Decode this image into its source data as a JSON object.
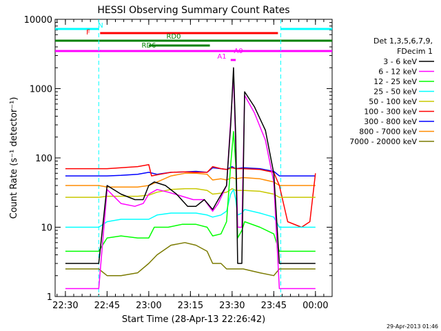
{
  "chart_data": {
    "type": "line",
    "title": "HESSI Observing Summary Count Rates",
    "xlabel": "Start Time (28-Apr-13 22:26:42)",
    "ylabel": "Count Rate (s⁻¹ detector⁻¹)",
    "y_scale": "log",
    "ylim": [
      1,
      10000
    ],
    "xlim_minutes": [
      -3.7,
      96
    ],
    "x_ticks": [
      {
        "minute": 0,
        "label": "22:30"
      },
      {
        "minute": 15,
        "label": "22:45"
      },
      {
        "minute": 30,
        "label": "23:00"
      },
      {
        "minute": 45,
        "label": "23:15"
      },
      {
        "minute": 60,
        "label": "23:30"
      },
      {
        "minute": 75,
        "label": "23:45"
      },
      {
        "minute": 90,
        "label": "00:00"
      }
    ],
    "y_ticks": [
      {
        "value": 1,
        "label": "1"
      },
      {
        "value": 10,
        "label": "10"
      },
      {
        "value": 100,
        "label": "100"
      },
      {
        "value": 1000,
        "label": "1000"
      },
      {
        "value": 10000,
        "label": "10000"
      }
    ],
    "legend": {
      "position": "right",
      "header": [
        "Det 1,3,5,6,7,9,",
        "FDecim 1"
      ]
    },
    "series": [
      {
        "name": "3 - 6 keV",
        "color": "#000000",
        "points": [
          [
            0,
            3
          ],
          [
            12,
            3
          ],
          [
            15,
            40
          ],
          [
            20,
            30
          ],
          [
            25,
            25
          ],
          [
            28,
            25
          ],
          [
            30,
            40
          ],
          [
            32,
            45
          ],
          [
            36,
            40
          ],
          [
            40,
            30
          ],
          [
            44,
            20
          ],
          [
            47,
            20
          ],
          [
            50,
            25
          ],
          [
            53,
            18
          ],
          [
            55,
            25
          ],
          [
            58,
            40
          ],
          [
            59.5,
            300
          ],
          [
            60.5,
            2000
          ],
          [
            61.3,
            200
          ],
          [
            62,
            3
          ],
          [
            63.5,
            3
          ],
          [
            64.5,
            900
          ],
          [
            68,
            550
          ],
          [
            72,
            250
          ],
          [
            75,
            60
          ],
          [
            77,
            3
          ],
          [
            90,
            3
          ]
        ]
      },
      {
        "name": "6 - 12 keV",
        "color": "#ff00ff",
        "points": [
          [
            0,
            1.3
          ],
          [
            12,
            1.3
          ],
          [
            15,
            35
          ],
          [
            20,
            22
          ],
          [
            25,
            20
          ],
          [
            28,
            22
          ],
          [
            30,
            30
          ],
          [
            33,
            35
          ],
          [
            37,
            32
          ],
          [
            42,
            28
          ],
          [
            46,
            25
          ],
          [
            50,
            25
          ],
          [
            53,
            17
          ],
          [
            55,
            22
          ],
          [
            58,
            40
          ],
          [
            59.5,
            350
          ],
          [
            60.5,
            1500
          ],
          [
            61.3,
            150
          ],
          [
            62,
            10
          ],
          [
            63.5,
            10
          ],
          [
            64.5,
            800
          ],
          [
            68,
            450
          ],
          [
            72,
            180
          ],
          [
            75,
            45
          ],
          [
            77,
            1.3
          ],
          [
            90,
            1.3
          ]
        ]
      },
      {
        "name": "12 - 25 keV",
        "color": "#00ff00",
        "points": [
          [
            0,
            4.5
          ],
          [
            12,
            4.5
          ],
          [
            15,
            7
          ],
          [
            20,
            7.5
          ],
          [
            26,
            7
          ],
          [
            30,
            7
          ],
          [
            32,
            10
          ],
          [
            37,
            10
          ],
          [
            42,
            11
          ],
          [
            47,
            11
          ],
          [
            51,
            10
          ],
          [
            53,
            7.5
          ],
          [
            56,
            8
          ],
          [
            58,
            12
          ],
          [
            59.5,
            80
          ],
          [
            60.5,
            240
          ],
          [
            61.3,
            80
          ],
          [
            62,
            7
          ],
          [
            63.5,
            9
          ],
          [
            64.5,
            12
          ],
          [
            70,
            10
          ],
          [
            75,
            8
          ],
          [
            77,
            4.5
          ],
          [
            90,
            4.5
          ]
        ]
      },
      {
        "name": "25 - 50 keV",
        "color": "#00ffff",
        "points": [
          [
            0,
            10
          ],
          [
            12,
            10
          ],
          [
            15,
            12
          ],
          [
            20,
            13
          ],
          [
            26,
            13
          ],
          [
            30,
            13
          ],
          [
            33,
            15
          ],
          [
            38,
            16
          ],
          [
            43,
            16
          ],
          [
            47,
            16
          ],
          [
            51,
            15
          ],
          [
            53,
            14
          ],
          [
            56,
            15
          ],
          [
            58,
            17
          ],
          [
            59.5,
            30
          ],
          [
            60.5,
            35
          ],
          [
            61.3,
            25
          ],
          [
            62,
            15
          ],
          [
            63.5,
            16
          ],
          [
            64.5,
            18
          ],
          [
            70,
            16
          ],
          [
            75,
            14
          ],
          [
            77,
            10
          ],
          [
            90,
            10
          ]
        ]
      },
      {
        "name": "50 - 100 keV",
        "color": "#c8c800",
        "points": [
          [
            0,
            27
          ],
          [
            12,
            27
          ],
          [
            15,
            28
          ],
          [
            20,
            28
          ],
          [
            26,
            28
          ],
          [
            30,
            29
          ],
          [
            33,
            32
          ],
          [
            38,
            35
          ],
          [
            43,
            36
          ],
          [
            47,
            36
          ],
          [
            51,
            34
          ],
          [
            53,
            30
          ],
          [
            56,
            31
          ],
          [
            58,
            32
          ],
          [
            60,
            36
          ],
          [
            61.3,
            34
          ],
          [
            64,
            34
          ],
          [
            70,
            33
          ],
          [
            75,
            30
          ],
          [
            77,
            27
          ],
          [
            90,
            27
          ]
        ]
      },
      {
        "name": "100 - 300 keV",
        "color": "#ff0000",
        "points": [
          [
            0,
            70
          ],
          [
            12,
            70
          ],
          [
            15,
            70
          ],
          [
            20,
            72
          ],
          [
            26,
            75
          ],
          [
            30,
            80
          ],
          [
            31,
            55
          ],
          [
            34,
            58
          ],
          [
            38,
            62
          ],
          [
            43,
            63
          ],
          [
            47,
            62
          ],
          [
            51,
            62
          ],
          [
            53,
            75
          ],
          [
            56,
            70
          ],
          [
            58,
            68
          ],
          [
            60,
            72
          ],
          [
            61.3,
            70
          ],
          [
            64,
            70
          ],
          [
            70,
            68
          ],
          [
            75,
            62
          ],
          [
            77,
            40
          ],
          [
            80,
            12
          ],
          [
            85,
            10
          ],
          [
            88,
            12
          ],
          [
            90,
            60
          ]
        ]
      },
      {
        "name": "300 - 800 keV",
        "color": "#0000ff",
        "points": [
          [
            0,
            55
          ],
          [
            12,
            55
          ],
          [
            15,
            55
          ],
          [
            20,
            56
          ],
          [
            26,
            58
          ],
          [
            30,
            62
          ],
          [
            33,
            58
          ],
          [
            38,
            62
          ],
          [
            43,
            63
          ],
          [
            47,
            64
          ],
          [
            51,
            62
          ],
          [
            53,
            72
          ],
          [
            56,
            70
          ],
          [
            58,
            68
          ],
          [
            60,
            75
          ],
          [
            61.3,
            70
          ],
          [
            64,
            72
          ],
          [
            70,
            70
          ],
          [
            75,
            64
          ],
          [
            77,
            55
          ],
          [
            90,
            55
          ]
        ]
      },
      {
        "name": "800 - 7000 keV",
        "color": "#ff8c00",
        "points": [
          [
            0,
            40
          ],
          [
            12,
            40
          ],
          [
            15,
            38
          ],
          [
            20,
            38
          ],
          [
            26,
            38
          ],
          [
            30,
            40
          ],
          [
            33,
            45
          ],
          [
            38,
            55
          ],
          [
            43,
            60
          ],
          [
            47,
            60
          ],
          [
            51,
            58
          ],
          [
            53,
            48
          ],
          [
            56,
            50
          ],
          [
            58,
            48
          ],
          [
            60,
            52
          ],
          [
            61.3,
            50
          ],
          [
            64,
            52
          ],
          [
            70,
            50
          ],
          [
            75,
            45
          ],
          [
            77,
            40
          ],
          [
            90,
            40
          ]
        ]
      },
      {
        "name": "7000 - 20000 keV",
        "color": "#7a7a00",
        "points": [
          [
            0,
            2.5
          ],
          [
            12,
            2.5
          ],
          [
            15,
            2
          ],
          [
            20,
            2
          ],
          [
            26,
            2.2
          ],
          [
            30,
            3
          ],
          [
            33,
            4
          ],
          [
            38,
            5.5
          ],
          [
            43,
            6
          ],
          [
            47,
            5.5
          ],
          [
            51,
            4.5
          ],
          [
            53,
            3
          ],
          [
            56,
            3
          ],
          [
            58,
            2.5
          ],
          [
            60,
            2.5
          ],
          [
            64,
            2.5
          ],
          [
            70,
            2.2
          ],
          [
            75,
            2
          ],
          [
            77,
            2.5
          ],
          [
            90,
            2.5
          ]
        ]
      }
    ],
    "state_bars": [
      {
        "label": "N",
        "color": "#00ffff",
        "segments": [
          [
            -3.7,
            12
          ],
          [
            77.5,
            96
          ]
        ]
      },
      {
        "label": "F",
        "color": "#ff0000",
        "segments": [
          [
            12.5,
            76.5
          ]
        ]
      },
      {
        "label": "RD0",
        "color": "#008000",
        "segments": [
          [
            -3.7,
            96
          ]
        ]
      },
      {
        "label": "RD6",
        "color": "#008000",
        "segments": [
          [
            30,
            52
          ]
        ]
      },
      {
        "label": "A1",
        "color": "#ff00ff",
        "segments": [
          [
            59.5,
            61.3
          ]
        ]
      },
      {
        "label": "A0",
        "color": "#ff00ff",
        "segments": [
          [
            -3.7,
            96
          ]
        ]
      }
    ],
    "footer_timestamp": "29-Apr-2013 01:46"
  }
}
